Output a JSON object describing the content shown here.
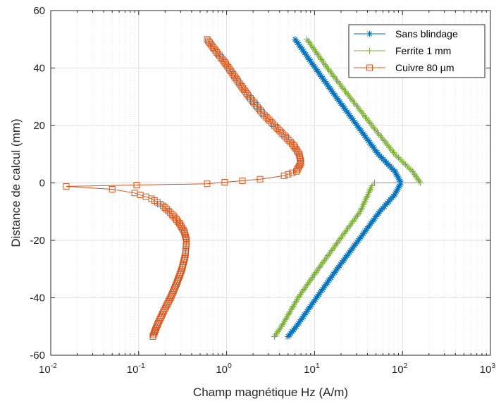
{
  "chart_data": {
    "type": "line",
    "title": "",
    "xlabel": "Champ magnétique Hz (A/m)",
    "ylabel": "Distance de calcul (mm)",
    "xscale": "log",
    "xlim": [
      0.01,
      1000
    ],
    "ylim": [
      -60,
      60
    ],
    "grid": true,
    "legend_position": "top-right",
    "x_ticks": [
      {
        "base": "10",
        "exp": "-2"
      },
      {
        "base": "10",
        "exp": "-1"
      },
      {
        "base": "10",
        "exp": "0"
      },
      {
        "base": "10",
        "exp": "1"
      },
      {
        "base": "10",
        "exp": "2"
      },
      {
        "base": "10",
        "exp": "3"
      }
    ],
    "y_ticks": [
      "-60",
      "-40",
      "-20",
      "0",
      "20",
      "40",
      "60"
    ],
    "y_tick_values": [
      -60,
      -40,
      -20,
      0,
      20,
      40,
      60
    ],
    "series": [
      {
        "name": "Sans blindage",
        "color": "#0072BD",
        "marker": "asterisk",
        "points": [
          [
            6.0,
            50
          ],
          [
            10.2,
            40
          ],
          [
            17.5,
            30
          ],
          [
            30.5,
            20
          ],
          [
            53.0,
            10
          ],
          [
            82.0,
            4
          ],
          [
            96.0,
            0
          ],
          [
            82.0,
            -4
          ],
          [
            55.0,
            -10
          ],
          [
            31.5,
            -20
          ],
          [
            18.0,
            -30
          ],
          [
            10.5,
            -40
          ],
          [
            6.2,
            -50
          ],
          [
            5.0,
            -53.5
          ]
        ]
      },
      {
        "name": "Ferrite 1 mm",
        "color": "#77AC30",
        "marker": "plus",
        "points": [
          [
            8.2,
            50
          ],
          [
            14.0,
            40
          ],
          [
            25.0,
            30
          ],
          [
            45.0,
            20
          ],
          [
            82.0,
            10
          ],
          [
            130.0,
            4
          ],
          [
            160.0,
            0
          ],
          [
            48.0,
            0
          ],
          [
            45.0,
            -1
          ],
          [
            33.0,
            -10
          ],
          [
            19.0,
            -20
          ],
          [
            11.0,
            -30
          ],
          [
            6.5,
            -40
          ],
          [
            4.2,
            -50
          ],
          [
            3.5,
            -53.5
          ]
        ]
      },
      {
        "name": "Cuivre 80 µm",
        "color": "#D95319",
        "marker": "square",
        "points": [
          [
            0.6,
            50
          ],
          [
            0.75,
            46
          ],
          [
            0.95,
            42
          ],
          [
            1.3,
            36
          ],
          [
            1.8,
            30
          ],
          [
            2.6,
            24
          ],
          [
            3.5,
            20
          ],
          [
            4.7,
            16
          ],
          [
            5.8,
            13
          ],
          [
            6.7,
            10
          ],
          [
            7.0,
            7
          ],
          [
            6.2,
            4
          ],
          [
            4.5,
            2.5
          ],
          [
            2.4,
            1.3
          ],
          [
            0.6,
            -0.3
          ],
          [
            0.015,
            -1.2
          ],
          [
            0.05,
            -2.2
          ],
          [
            0.09,
            -3.5
          ],
          [
            0.14,
            -5.5
          ],
          [
            0.19,
            -8
          ],
          [
            0.24,
            -11
          ],
          [
            0.29,
            -14
          ],
          [
            0.33,
            -17
          ],
          [
            0.35,
            -20
          ],
          [
            0.34,
            -25
          ],
          [
            0.31,
            -30
          ],
          [
            0.27,
            -35
          ],
          [
            0.23,
            -40
          ],
          [
            0.19,
            -45
          ],
          [
            0.16,
            -50
          ],
          [
            0.145,
            -53.5
          ]
        ]
      }
    ]
  }
}
